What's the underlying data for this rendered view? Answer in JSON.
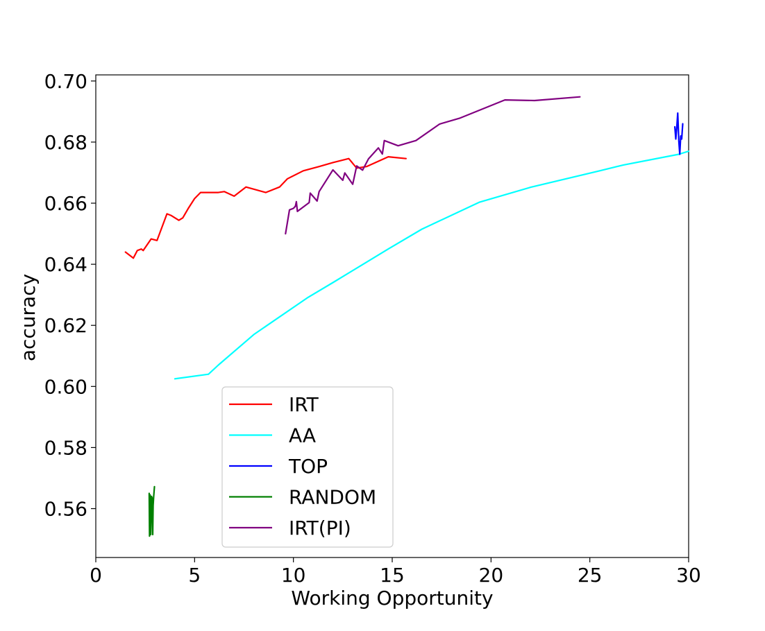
{
  "chart_data": {
    "type": "line",
    "title": "",
    "xlabel": "Working Opportunity",
    "ylabel": "accuracy",
    "xlim": [
      0,
      30
    ],
    "ylim": [
      0.544,
      0.702
    ],
    "xticks": [
      0,
      5,
      10,
      15,
      20,
      25,
      30
    ],
    "xtick_labels": [
      "0",
      "5",
      "10",
      "15",
      "20",
      "25",
      "30"
    ],
    "yticks": [
      0.56,
      0.58,
      0.6,
      0.62,
      0.64,
      0.66,
      0.68,
      0.7
    ],
    "ytick_labels": [
      "0.56",
      "0.58",
      "0.60",
      "0.62",
      "0.64",
      "0.66",
      "0.68",
      "0.70"
    ],
    "grid": false,
    "legend_position": "lower-left",
    "series": [
      {
        "name": "IRT",
        "color": "#ff0000",
        "points": [
          [
            1.5,
            0.644
          ],
          [
            1.9,
            0.642
          ],
          [
            2.1,
            0.6445
          ],
          [
            2.3,
            0.645
          ],
          [
            2.4,
            0.6445
          ],
          [
            2.8,
            0.6483
          ],
          [
            3.1,
            0.6478
          ],
          [
            3.6,
            0.6565
          ],
          [
            3.8,
            0.656
          ],
          [
            4.2,
            0.6544
          ],
          [
            4.4,
            0.6552
          ],
          [
            4.7,
            0.6585
          ],
          [
            5.0,
            0.6615
          ],
          [
            5.3,
            0.6635
          ],
          [
            6.2,
            0.6635
          ],
          [
            6.5,
            0.6638
          ],
          [
            7.0,
            0.6623
          ],
          [
            7.6,
            0.6653
          ],
          [
            8.6,
            0.6635
          ],
          [
            9.3,
            0.6653
          ],
          [
            9.7,
            0.668
          ],
          [
            10.5,
            0.6706
          ],
          [
            11.3,
            0.672
          ],
          [
            12.0,
            0.6733
          ],
          [
            12.8,
            0.6746
          ],
          [
            13.2,
            0.6715
          ],
          [
            13.7,
            0.672
          ],
          [
            14.8,
            0.6752
          ],
          [
            15.7,
            0.6746
          ]
        ]
      },
      {
        "name": "AA",
        "color": "#00ffff",
        "points": [
          [
            4.0,
            0.6025
          ],
          [
            5.7,
            0.604
          ],
          [
            6.2,
            0.607
          ],
          [
            8.0,
            0.617
          ],
          [
            10.7,
            0.629
          ],
          [
            12.0,
            0.634
          ],
          [
            14.8,
            0.645
          ],
          [
            16.5,
            0.6515
          ],
          [
            19.4,
            0.6603
          ],
          [
            22.0,
            0.6652
          ],
          [
            25.5,
            0.6706
          ],
          [
            26.7,
            0.6725
          ],
          [
            29.5,
            0.676
          ],
          [
            30.0,
            0.677
          ]
        ]
      },
      {
        "name": "TOP",
        "color": "#0000ff",
        "points": [
          [
            29.3,
            0.685
          ],
          [
            29.35,
            0.681
          ],
          [
            29.4,
            0.6848
          ],
          [
            29.45,
            0.6895
          ],
          [
            29.5,
            0.6805
          ],
          [
            29.55,
            0.676
          ],
          [
            29.6,
            0.682
          ],
          [
            29.65,
            0.681
          ],
          [
            29.7,
            0.686
          ]
        ]
      },
      {
        "name": "RANDOM",
        "color": "#008000",
        "points": [
          [
            2.7,
            0.565
          ],
          [
            2.72,
            0.551
          ],
          [
            2.75,
            0.5645
          ],
          [
            2.78,
            0.5515
          ],
          [
            2.82,
            0.564
          ],
          [
            2.85,
            0.5635
          ],
          [
            2.88,
            0.5515
          ],
          [
            2.9,
            0.561
          ],
          [
            2.93,
            0.564
          ],
          [
            2.97,
            0.5672
          ]
        ]
      },
      {
        "name": "IRT(PI)",
        "color": "#800080",
        "points": [
          [
            9.6,
            0.65
          ],
          [
            9.8,
            0.6578
          ],
          [
            10.0,
            0.6583
          ],
          [
            10.1,
            0.659
          ],
          [
            10.15,
            0.6605
          ],
          [
            10.2,
            0.6573
          ],
          [
            10.8,
            0.6602
          ],
          [
            10.85,
            0.6633
          ],
          [
            11.2,
            0.6607
          ],
          [
            11.3,
            0.6638
          ],
          [
            12.0,
            0.6709
          ],
          [
            12.5,
            0.6675
          ],
          [
            12.6,
            0.6699
          ],
          [
            13.0,
            0.6662
          ],
          [
            13.2,
            0.6722
          ],
          [
            13.5,
            0.6708
          ],
          [
            13.8,
            0.6745
          ],
          [
            14.3,
            0.6781
          ],
          [
            14.5,
            0.6761
          ],
          [
            14.6,
            0.6805
          ],
          [
            15.3,
            0.6788
          ],
          [
            16.2,
            0.6805
          ],
          [
            17.4,
            0.6859
          ],
          [
            18.4,
            0.6878
          ],
          [
            20.7,
            0.6938
          ],
          [
            22.2,
            0.6936
          ],
          [
            24.5,
            0.6948
          ]
        ]
      }
    ]
  }
}
